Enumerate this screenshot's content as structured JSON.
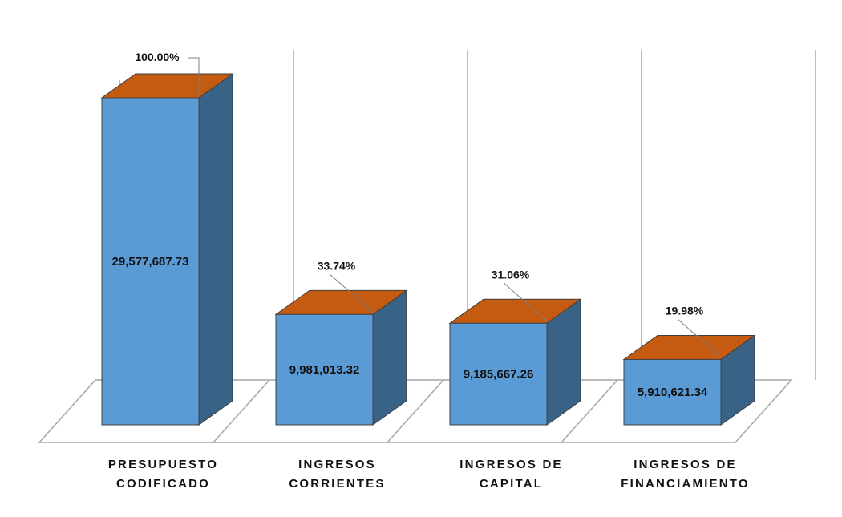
{
  "chart_data": {
    "type": "bar",
    "title": "",
    "xlabel": "",
    "ylabel": "",
    "ylim": [
      0,
      29577687.73
    ],
    "grid": false,
    "legend": "none",
    "categories": [
      [
        "PRESUPUESTO",
        "CODIFICADO"
      ],
      [
        "INGRESOS",
        "CORRIENTES"
      ],
      [
        "INGRESOS DE",
        "CAPITAL"
      ],
      [
        "INGRESOS DE",
        "FINANCIAMIENTO"
      ]
    ],
    "values": [
      29577687.73,
      9981013.32,
      9185667.26,
      5910621.34
    ],
    "value_labels": [
      "29,577,687.73",
      "9,981,013.32",
      "9,185,667.26",
      "5,910,621.34"
    ],
    "percent_labels": [
      "100.00%",
      "33.74%",
      "31.06%",
      "19.98%"
    ],
    "colors": {
      "front": "#5b9bd5",
      "side": "#386387",
      "top": "#c55a11",
      "outline": "#404040",
      "wall": "#a6a6a6"
    }
  }
}
